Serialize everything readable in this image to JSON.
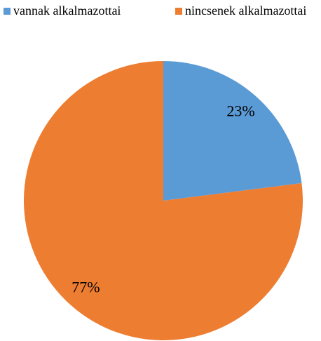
{
  "chart_data": {
    "type": "pie",
    "categories": [
      "vannak alkalmazottai",
      "nincsenek alkalmazottai"
    ],
    "values": [
      23,
      77
    ],
    "value_labels": [
      "23%",
      "77%"
    ],
    "colors": [
      "#5b9bd5",
      "#ed7d31"
    ],
    "legend": "top"
  }
}
